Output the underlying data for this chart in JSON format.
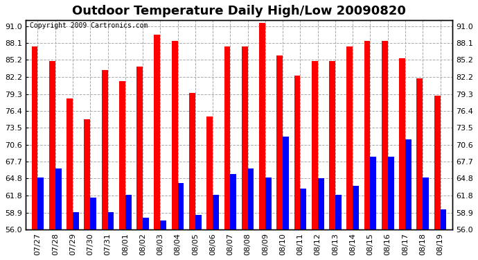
{
  "title": "Outdoor Temperature Daily High/Low 20090820",
  "copyright": "Copyright 2009 Cartronics.com",
  "categories": [
    "07/27",
    "07/28",
    "07/29",
    "07/30",
    "07/31",
    "08/01",
    "08/02",
    "08/03",
    "08/04",
    "08/05",
    "08/06",
    "08/07",
    "08/08",
    "08/09",
    "08/10",
    "08/11",
    "08/12",
    "08/13",
    "08/14",
    "08/15",
    "08/16",
    "08/17",
    "08/18",
    "08/19"
  ],
  "highs": [
    87.5,
    85.0,
    78.5,
    75.0,
    83.5,
    81.5,
    84.0,
    89.5,
    88.5,
    79.5,
    75.5,
    87.5,
    87.5,
    91.5,
    86.0,
    82.5,
    85.0,
    85.0,
    87.5,
    88.5,
    88.5,
    85.5,
    82.0,
    79.0
  ],
  "lows": [
    65.0,
    66.5,
    59.0,
    61.5,
    59.0,
    62.0,
    58.0,
    57.5,
    64.0,
    58.5,
    62.0,
    65.5,
    66.5,
    65.0,
    72.0,
    63.0,
    64.8,
    62.0,
    63.5,
    68.5,
    68.5,
    71.5,
    65.0,
    59.5
  ],
  "high_color": "#ff0000",
  "low_color": "#0000ff",
  "bg_color": "#ffffff",
  "grid_color": "#aaaaaa",
  "ylim_min": 56.0,
  "ylim_max": 92.0,
  "yticks": [
    56.0,
    58.9,
    61.8,
    64.8,
    67.7,
    70.6,
    73.5,
    76.4,
    79.3,
    82.2,
    85.2,
    88.1,
    91.0
  ],
  "bar_width": 0.35,
  "title_fontsize": 13,
  "tick_fontsize": 8,
  "copyright_fontsize": 7
}
